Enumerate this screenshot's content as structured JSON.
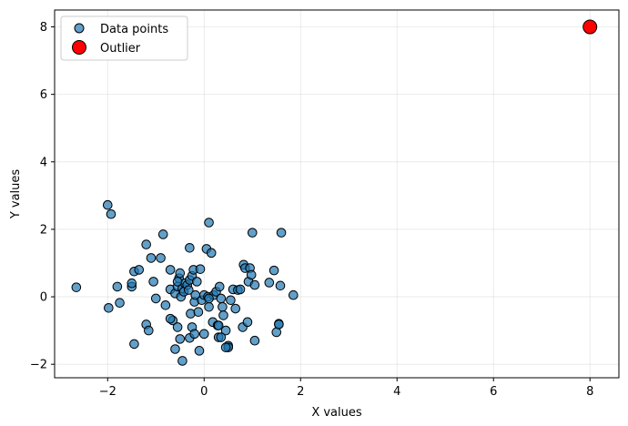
{
  "chart_data": {
    "type": "scatter",
    "title": "",
    "xlabel": "X values",
    "ylabel": "Y values",
    "xlim": [
      -3.1,
      8.6
    ],
    "ylim": [
      -2.4,
      8.5
    ],
    "xticks": [
      -2,
      0,
      2,
      4,
      6,
      8
    ],
    "yticks": [
      -2,
      0,
      2,
      4,
      6,
      8
    ],
    "grid": true,
    "legend_position": "top-left",
    "series": [
      {
        "name": "Data points",
        "color": "#1f77b4",
        "points": [
          [
            -2.65,
            0.28
          ],
          [
            -2.0,
            2.72
          ],
          [
            -1.93,
            2.45
          ],
          [
            -1.98,
            -0.33
          ],
          [
            -1.8,
            0.3
          ],
          [
            -1.75,
            -0.18
          ],
          [
            -1.5,
            0.3
          ],
          [
            -1.5,
            0.4
          ],
          [
            -1.45,
            0.75
          ],
          [
            -1.35,
            0.8
          ],
          [
            -1.45,
            -1.4
          ],
          [
            -1.2,
            1.55
          ],
          [
            -1.1,
            1.15
          ],
          [
            -1.05,
            0.45
          ],
          [
            -1.0,
            -0.05
          ],
          [
            -0.9,
            1.15
          ],
          [
            -0.85,
            1.85
          ],
          [
            -0.8,
            -0.25
          ],
          [
            -0.7,
            0.8
          ],
          [
            -0.7,
            0.22
          ],
          [
            -0.65,
            -0.7
          ],
          [
            -0.6,
            0.1
          ],
          [
            -0.55,
            0.3
          ],
          [
            -0.52,
            0.55
          ],
          [
            -0.5,
            0.7
          ],
          [
            -0.48,
            0.0
          ],
          [
            -0.45,
            0.25
          ],
          [
            -0.42,
            0.15
          ],
          [
            -0.4,
            0.4
          ],
          [
            -0.35,
            0.35
          ],
          [
            -0.32,
            0.2
          ],
          [
            -0.3,
            0.5
          ],
          [
            -0.28,
            -0.5
          ],
          [
            -0.25,
            0.62
          ],
          [
            -0.22,
            0.8
          ],
          [
            -0.2,
            -0.15
          ],
          [
            -0.18,
            0.05
          ],
          [
            -0.15,
            0.45
          ],
          [
            -0.12,
            -0.45
          ],
          [
            -0.08,
            0.82
          ],
          [
            -0.05,
            -0.1
          ],
          [
            0.0,
            0.05
          ],
          [
            0.05,
            1.42
          ],
          [
            0.08,
            0.0
          ],
          [
            0.1,
            -0.3
          ],
          [
            0.15,
            1.3
          ],
          [
            0.18,
            -0.75
          ],
          [
            0.2,
            0.05
          ],
          [
            0.25,
            0.15
          ],
          [
            0.28,
            -0.85
          ],
          [
            0.3,
            -1.2
          ],
          [
            0.32,
            0.3
          ],
          [
            0.35,
            -0.05
          ],
          [
            0.38,
            -0.3
          ],
          [
            0.4,
            -0.55
          ],
          [
            0.45,
            -1.0
          ],
          [
            0.5,
            -1.45
          ],
          [
            0.55,
            -0.1
          ],
          [
            0.6,
            0.22
          ],
          [
            0.65,
            -0.35
          ],
          [
            0.7,
            0.2
          ],
          [
            0.75,
            0.22
          ],
          [
            0.8,
            -0.9
          ],
          [
            0.82,
            0.95
          ],
          [
            0.85,
            0.85
          ],
          [
            0.92,
            0.45
          ],
          [
            0.95,
            0.85
          ],
          [
            0.98,
            0.65
          ],
          [
            1.0,
            1.9
          ],
          [
            1.05,
            0.35
          ],
          [
            0.1,
            2.2
          ],
          [
            -0.3,
            1.45
          ],
          [
            -1.2,
            -0.82
          ],
          [
            -1.15,
            -1.0
          ],
          [
            -0.7,
            -0.65
          ],
          [
            -0.6,
            -1.55
          ],
          [
            -0.55,
            -0.9
          ],
          [
            -0.5,
            -1.25
          ],
          [
            -0.45,
            -1.9
          ],
          [
            -0.3,
            -1.22
          ],
          [
            -0.25,
            -0.9
          ],
          [
            -0.2,
            -1.1
          ],
          [
            -0.1,
            -1.6
          ],
          [
            0.0,
            -1.1
          ],
          [
            0.1,
            -0.05
          ],
          [
            0.3,
            -0.85
          ],
          [
            0.35,
            -1.2
          ],
          [
            0.5,
            -1.5
          ],
          [
            0.9,
            -0.75
          ],
          [
            1.05,
            -1.3
          ],
          [
            1.35,
            0.42
          ],
          [
            1.45,
            0.78
          ],
          [
            1.5,
            -1.05
          ],
          [
            1.55,
            -0.8
          ],
          [
            1.58,
            0.33
          ],
          [
            1.6,
            1.9
          ],
          [
            1.55,
            -0.82
          ],
          [
            1.85,
            0.05
          ],
          [
            0.45,
            -1.5
          ],
          [
            -0.55,
            0.45
          ]
        ]
      },
      {
        "name": "Outlier",
        "color": "#ff0000",
        "points": [
          [
            8.0,
            8.0
          ]
        ]
      }
    ]
  }
}
